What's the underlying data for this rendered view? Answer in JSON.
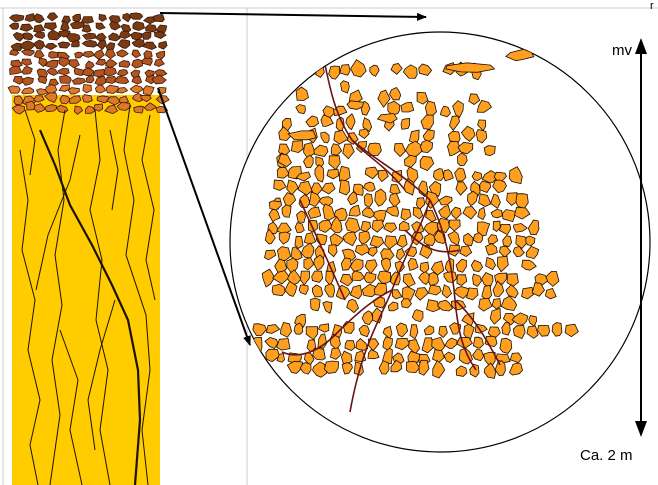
{
  "labels": {
    "top": "mv",
    "bottom": "Ca. 2 m",
    "corner": "r"
  },
  "colors": {
    "soil_column": "#ffcc00",
    "aggregate_fill": "#ff9e1f",
    "aggregate_stroke": "#1a1000",
    "topsoil_dark": "#7a3a14",
    "topsoil_mid": "#b4541e",
    "topsoil_light": "#e0782a",
    "crack": "#1e1200",
    "root": "#6b1418",
    "frame_line": "#c8c8c8"
  }
}
